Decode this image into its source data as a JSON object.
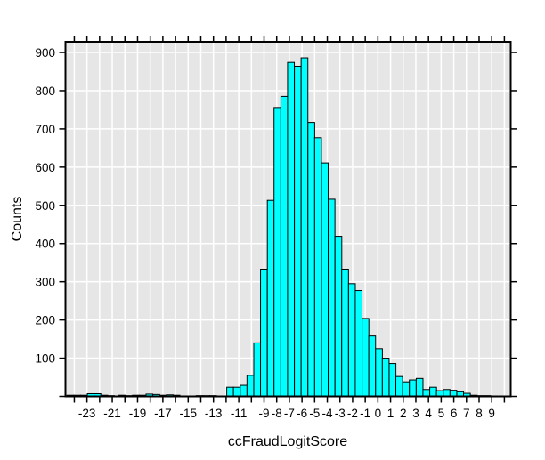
{
  "page": {
    "background": "#ffffff"
  },
  "chart_data": {
    "type": "bar",
    "subtype": "histogram",
    "title": "",
    "xlabel": "ccFraudLogitScore",
    "ylabel": "Counts",
    "xlim": [
      -24.7,
      10.5
    ],
    "ylim": [
      0,
      928
    ],
    "grid": true,
    "legend": "none",
    "bin_width": 0.535,
    "x_tick_min": -24,
    "x_tick_max": 10,
    "x_labeled_ticks": [
      -23,
      -21,
      -19,
      -17,
      -15,
      -13,
      -11,
      -9,
      -8,
      -7,
      -6,
      -5,
      -4,
      -3,
      -2,
      -1,
      0,
      1,
      2,
      3,
      4,
      5,
      6,
      7,
      8,
      9
    ],
    "y_ticks": [
      0,
      100,
      200,
      300,
      400,
      500,
      600,
      700,
      800,
      900
    ],
    "y_labeled_ticks": [
      100,
      200,
      300,
      400,
      500,
      600,
      700,
      800,
      900
    ],
    "bars": [
      [
        -24.58,
        3
      ],
      [
        -24.04,
        3
      ],
      [
        -23.51,
        3
      ],
      [
        -22.97,
        7
      ],
      [
        -22.44,
        7
      ],
      [
        -21.9,
        3
      ],
      [
        -21.37,
        2
      ],
      [
        -20.47,
        3
      ],
      [
        -19.93,
        2
      ],
      [
        -19.4,
        3
      ],
      [
        -18.86,
        3
      ],
      [
        -18.33,
        6
      ],
      [
        -17.79,
        5
      ],
      [
        -17.26,
        3
      ],
      [
        -16.72,
        4
      ],
      [
        -16.19,
        3
      ],
      [
        -14.37,
        2
      ],
      [
        -13.83,
        2
      ],
      [
        -13.3,
        2
      ],
      [
        -11.95,
        24
      ],
      [
        -11.42,
        24
      ],
      [
        -10.88,
        29
      ],
      [
        -10.35,
        55
      ],
      [
        -9.81,
        140
      ],
      [
        -9.28,
        333
      ],
      [
        -8.74,
        513
      ],
      [
        -8.21,
        756
      ],
      [
        -7.67,
        785
      ],
      [
        -7.14,
        874
      ],
      [
        -6.6,
        864
      ],
      [
        -6.07,
        886
      ],
      [
        -5.53,
        717
      ],
      [
        -5.0,
        677
      ],
      [
        -4.46,
        611
      ],
      [
        -3.93,
        516
      ],
      [
        -3.39,
        419
      ],
      [
        -2.86,
        333
      ],
      [
        -2.32,
        295
      ],
      [
        -1.79,
        277
      ],
      [
        -1.25,
        204
      ],
      [
        -0.72,
        158
      ],
      [
        -0.18,
        125
      ],
      [
        0.35,
        100
      ],
      [
        0.89,
        86
      ],
      [
        1.42,
        52
      ],
      [
        1.96,
        38
      ],
      [
        2.49,
        43
      ],
      [
        3.03,
        47
      ],
      [
        3.56,
        18
      ],
      [
        4.1,
        24
      ],
      [
        4.63,
        15
      ],
      [
        5.17,
        18
      ],
      [
        5.7,
        16
      ],
      [
        6.24,
        12
      ],
      [
        6.77,
        8
      ],
      [
        7.31,
        3
      ],
      [
        7.84,
        2
      ],
      [
        8.38,
        2
      ]
    ],
    "colors": {
      "bar_fill": "#00FFFF",
      "bar_edge": "#000000",
      "plot_background": "#E6E6E6",
      "grid": "#FFFFFF",
      "box": "#000000",
      "text": "#000000"
    }
  }
}
